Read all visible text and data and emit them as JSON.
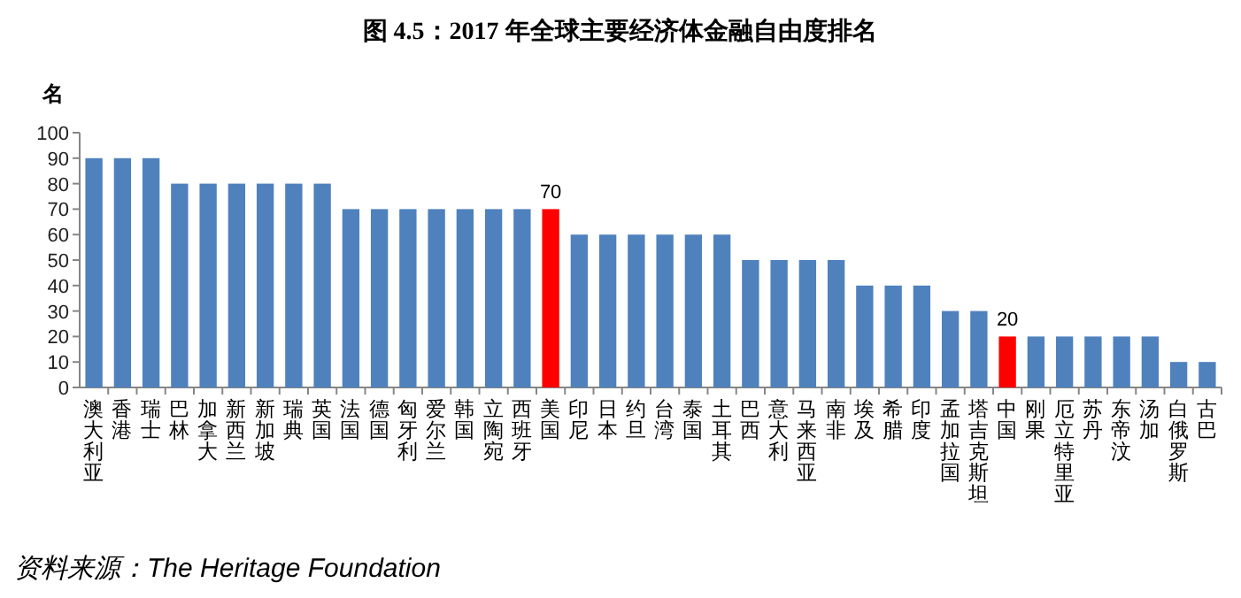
{
  "chart_data": {
    "type": "bar",
    "title": "图 4.5：2017 年全球主要经济体金融自由度排名",
    "ylabel": "名",
    "categories": [
      "澳大利亚",
      "香港",
      "瑞士",
      "巴林",
      "加拿大",
      "新西兰",
      "新加坡",
      "瑞典",
      "英国",
      "法国",
      "德国",
      "匈牙利",
      "爱尔兰",
      "韩国",
      "立陶宛",
      "西班牙",
      "美国",
      "印尼",
      "日本",
      "约旦",
      "台湾",
      "泰国",
      "土耳其",
      "巴西",
      "意大利",
      "马来西亚",
      "南非",
      "埃及",
      "希腊",
      "印度",
      "孟加拉国",
      "塔吉克斯坦",
      "中国",
      "刚果",
      "厄立特里亚",
      "苏丹",
      "东帝汶",
      "汤加",
      "白俄罗斯",
      "古巴"
    ],
    "values": [
      90,
      90,
      90,
      80,
      80,
      80,
      80,
      80,
      80,
      70,
      70,
      70,
      70,
      70,
      70,
      70,
      70,
      60,
      60,
      60,
      60,
      60,
      60,
      50,
      50,
      50,
      50,
      40,
      40,
      40,
      30,
      30,
      20,
      20,
      20,
      20,
      20,
      20,
      10,
      10
    ],
    "colors": [
      "#4f81bd",
      "#4f81bd",
      "#4f81bd",
      "#4f81bd",
      "#4f81bd",
      "#4f81bd",
      "#4f81bd",
      "#4f81bd",
      "#4f81bd",
      "#4f81bd",
      "#4f81bd",
      "#4f81bd",
      "#4f81bd",
      "#4f81bd",
      "#4f81bd",
      "#4f81bd",
      "#ff0000",
      "#4f81bd",
      "#4f81bd",
      "#4f81bd",
      "#4f81bd",
      "#4f81bd",
      "#4f81bd",
      "#4f81bd",
      "#4f81bd",
      "#4f81bd",
      "#4f81bd",
      "#4f81bd",
      "#4f81bd",
      "#4f81bd",
      "#4f81bd",
      "#4f81bd",
      "#ff0000",
      "#4f81bd",
      "#4f81bd",
      "#4f81bd",
      "#4f81bd",
      "#4f81bd",
      "#4f81bd",
      "#4f81bd"
    ],
    "value_labels": [
      null,
      null,
      null,
      null,
      null,
      null,
      null,
      null,
      null,
      null,
      null,
      null,
      null,
      null,
      null,
      null,
      "70",
      null,
      null,
      null,
      null,
      null,
      null,
      null,
      null,
      null,
      null,
      null,
      null,
      null,
      null,
      null,
      "20",
      null,
      null,
      null,
      null,
      null,
      null,
      null
    ],
    "ylim": [
      0,
      100
    ],
    "yticks": [
      0,
      10,
      20,
      30,
      40,
      50,
      60,
      70,
      80,
      90,
      100
    ],
    "grid": false,
    "annotations": [
      "资料来源：The Heritage Foundation"
    ]
  }
}
